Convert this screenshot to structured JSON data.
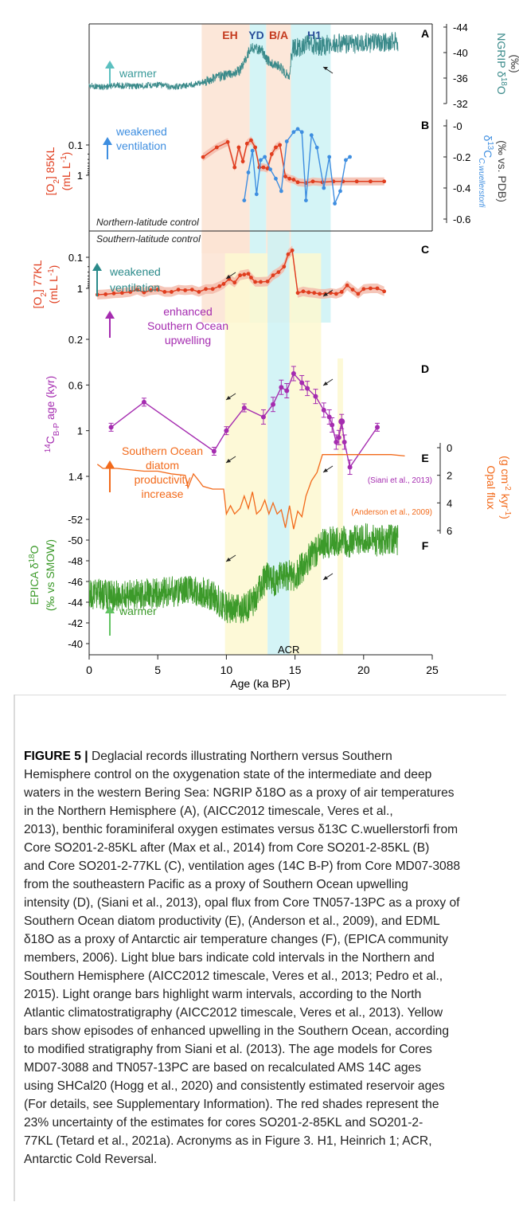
{
  "figure": {
    "period_labels": [
      {
        "text": "EH",
        "color": "#c43a1e"
      },
      {
        "text": "YD",
        "color": "#2a4f9a"
      },
      {
        "text": "B/A",
        "color": "#c43a1e"
      },
      {
        "text": "H1",
        "color": "#2a4f9a"
      }
    ],
    "period_bars": [
      {
        "name": "EH",
        "type": "warm",
        "from_ka": 8.2,
        "to_ka": 11.7,
        "color": "#fbe3d2"
      },
      {
        "name": "YD",
        "type": "cold",
        "from_ka": 11.7,
        "to_ka": 12.9,
        "color": "#cdf2f5"
      },
      {
        "name": "B/A",
        "type": "warm",
        "from_ka": 12.9,
        "to_ka": 14.7,
        "color": "#fbe3d2"
      },
      {
        "name": "H1",
        "type": "cold",
        "from_ka": 14.7,
        "to_ka": 17.6,
        "color": "#cdf2f5"
      },
      {
        "name": "upwelling-1",
        "type": "upwelling",
        "from_ka": 9.9,
        "to_ka": 13.0,
        "color": "#fdf8d0"
      },
      {
        "name": "ACR",
        "type": "cold",
        "from_ka": 13.0,
        "to_ka": 14.6,
        "color": "#cdf2f5"
      },
      {
        "name": "upwelling-2",
        "type": "upwelling",
        "from_ka": 14.6,
        "to_ka": 16.9,
        "color": "#fdf8d0"
      },
      {
        "name": "upwelling-3",
        "type": "upwelling",
        "from_ka": 18.1,
        "to_ka": 18.5,
        "color": "#fdf8d0"
      }
    ],
    "panel_letters": [
      "A",
      "B",
      "C",
      "D",
      "E",
      "F"
    ],
    "section_labels": {
      "north": "Northern-latitude control",
      "south": "Southern-latitude control"
    },
    "annotations": {
      "a_warmer": "warmer",
      "b_text": [
        "weakened",
        "ventilation"
      ],
      "c_text": [
        "weakened",
        "ventilation"
      ],
      "d_text": [
        "enhanced",
        "Southern Ocean",
        "upwelling"
      ],
      "e_text": [
        "Southern Ocean",
        "diatom",
        "productivity",
        "increase"
      ],
      "f_warmer": "warmer",
      "acr": "ACR",
      "siani": "(Siani et al., 2013)",
      "anderson": "(Anderson et al., 2009)"
    },
    "colors": {
      "ngrip": "#3a8a8a",
      "o2": "#e03d1e",
      "o2_band": "#f2b8a8",
      "d13c": "#3e8ee0",
      "c14": "#a52cb0",
      "opal": "#f26a1b",
      "epica": "#3c9a2a",
      "arrow_a": "#5cc0c0",
      "arrow_c": "#2a8a8a"
    }
  },
  "chart_data": [
    {
      "type": "line",
      "panel": "A",
      "series_name": "NGRIP δ18O",
      "ylabel": "NGRIP δ18O (‰)",
      "yticks": [
        -32,
        -36,
        -40,
        -44
      ],
      "ylim": [
        -44,
        -32
      ],
      "x": [
        0,
        1,
        2,
        3,
        4,
        5,
        6,
        7,
        8,
        8.5,
        9,
        10,
        11,
        11.5,
        11.8,
        12.2,
        12.6,
        12.9,
        13.3,
        13.8,
        14.3,
        14.6,
        14.8,
        15.5,
        16,
        17,
        18,
        19,
        20,
        21,
        22,
        22.5
      ],
      "y": [
        -34.8,
        -34.6,
        -34.9,
        -34.7,
        -34.8,
        -35.0,
        -34.6,
        -34.8,
        -35.2,
        -35.5,
        -36.0,
        -36.5,
        -37.2,
        -39.5,
        -40.8,
        -40.6,
        -40.3,
        -39.0,
        -38.2,
        -38.0,
        -36.8,
        -36.4,
        -40.6,
        -41.0,
        -41.2,
        -41.0,
        -41.5,
        -41.2,
        -41.6,
        -41.4,
        -41.8,
        -41.5
      ]
    },
    {
      "type": "line",
      "panel": "B",
      "series_name": "[O2] 85KL",
      "ylabel": "[O2] 85KL (mL L-1)",
      "yscale": "log-reversed",
      "yticks": [
        0.1,
        0.5,
        1
      ],
      "x": [
        8.3,
        9.3,
        10.1,
        10.6,
        10.9,
        11.2,
        11.5,
        11.8,
        12.1,
        12.4,
        12.7,
        13.0,
        13.3,
        13.6,
        13.9,
        14.3,
        14.6,
        14.9,
        15.2,
        15.8,
        16.3,
        17.0,
        17.8,
        18.5,
        19.5,
        20.5,
        21.5
      ],
      "y": [
        0.25,
        0.12,
        0.08,
        0.55,
        0.12,
        0.35,
        0.09,
        0.07,
        0.12,
        0.55,
        0.55,
        0.6,
        0.2,
        0.12,
        0.1,
        1.1,
        1.3,
        1.4,
        1.7,
        1.8,
        1.6,
        1.7,
        1.6,
        1.6,
        1.6,
        1.6,
        1.6
      ]
    },
    {
      "type": "line",
      "panel": "B",
      "series_name": "δ13C C.wuellerstorfi",
      "ylabel": "δ13C C.wuellerstorfi (‰ vs. PDB)",
      "yticks": [
        -0.6,
        -0.4,
        -0.2,
        0
      ],
      "x": [
        11.3,
        11.6,
        11.9,
        12.2,
        12.5,
        12.8,
        13.2,
        13.6,
        14.0,
        14.4,
        14.9,
        15.2,
        15.5,
        15.8,
        16.2,
        16.6,
        17.1,
        17.5,
        17.9,
        18.3,
        18.7,
        19.0
      ],
      "y": [
        -0.48,
        -0.3,
        -0.16,
        -0.44,
        -0.22,
        -0.2,
        -0.28,
        -0.34,
        -0.42,
        -0.1,
        -0.04,
        -0.02,
        -0.04,
        -0.48,
        -0.06,
        -0.14,
        -0.4,
        -0.2,
        -0.5,
        -0.42,
        -0.22,
        -0.2
      ]
    },
    {
      "type": "line",
      "panel": "C",
      "series_name": "[O2] 77KL",
      "ylabel": "[O2] 77KL (mL L-1)",
      "yscale": "log-reversed",
      "yticks": [
        0.1,
        0.5,
        1
      ],
      "x": [
        0.6,
        1.2,
        1.8,
        2.4,
        3.0,
        3.5,
        4.0,
        4.5,
        5.0,
        5.5,
        6.0,
        6.5,
        7.0,
        7.5,
        8.0,
        8.5,
        9.0,
        9.5,
        9.8,
        10.2,
        10.6,
        11.0,
        11.3,
        11.6,
        11.8,
        12.1,
        12.5,
        13.0,
        13.4,
        13.8,
        14.2,
        14.5,
        14.8,
        15.2,
        15.6,
        16.0,
        16.4,
        16.8,
        17.2,
        17.6,
        18.0,
        18.4,
        18.8,
        19.2,
        19.6,
        20.0,
        20.5,
        21.0,
        21.5
      ],
      "y": [
        1.6,
        1.55,
        1.45,
        1.4,
        1.3,
        1.1,
        1.35,
        1.15,
        1.1,
        1.3,
        1.3,
        1.1,
        1.15,
        1.1,
        1.3,
        1.05,
        1.05,
        0.85,
        0.72,
        0.5,
        0.65,
        0.38,
        0.36,
        0.34,
        0.45,
        0.62,
        0.62,
        0.6,
        0.38,
        0.3,
        0.2,
        0.08,
        0.06,
        1.4,
        1.25,
        1.35,
        1.4,
        1.5,
        1.5,
        1.4,
        1.5,
        1.3,
        0.8,
        1.1,
        1.5,
        1.05,
        1.0,
        1.0,
        1.25
      ]
    },
    {
      "type": "scatter",
      "panel": "D",
      "series_name": "14C B-P age",
      "ylabel": "14C B-P age (kyr)",
      "yticks": [
        0.2,
        0.6,
        1,
        1.4
      ],
      "ylim": [
        1.6,
        0.1
      ],
      "x": [
        1.6,
        4.0,
        9.1,
        10.0,
        11.3,
        12.7,
        13.4,
        14.0,
        14.4,
        14.9,
        15.5,
        15.9,
        16.5,
        17.1,
        17.5,
        17.7,
        18.0,
        18.2,
        18.4,
        18.6,
        19.0,
        21.0
      ],
      "y": [
        0.97,
        0.75,
        1.18,
        1.0,
        0.8,
        0.88,
        0.77,
        0.62,
        0.65,
        0.5,
        0.58,
        0.63,
        0.7,
        0.82,
        0.88,
        0.95,
        1.1,
        1.06,
        0.92,
        1.1,
        1.32,
        0.97
      ]
    },
    {
      "type": "line",
      "panel": "E",
      "series_name": "Opal flux",
      "ylabel": "Opal flux (g cm-2 kyr-1)",
      "yticks": [
        0,
        2,
        4,
        6
      ],
      "ylim": [
        0,
        6
      ],
      "x": [
        0.6,
        1.0,
        2.0,
        3.0,
        4.0,
        5.0,
        6.0,
        7.0,
        7.2,
        7.6,
        8.0,
        8.3,
        9.0,
        9.8,
        10.0,
        10.3,
        10.6,
        11.0,
        11.3,
        11.6,
        11.9,
        12.2,
        12.5,
        12.8,
        13.1,
        13.4,
        13.7,
        14.0,
        14.3,
        14.6,
        14.9,
        15.2,
        15.5,
        15.8,
        16.2,
        16.6,
        17.0,
        17.5,
        18.0,
        18.5,
        19.0,
        20.0,
        21.0,
        22.0,
        23.0
      ],
      "y": [
        1.2,
        1.5,
        1.5,
        1.6,
        1.7,
        1.7,
        1.9,
        2.0,
        2.9,
        1.9,
        2.4,
        2.8,
        3.0,
        3.0,
        4.8,
        4.2,
        4.8,
        4.4,
        3.5,
        4.4,
        3.2,
        4.8,
        4.5,
        3.8,
        4.8,
        4.0,
        4.8,
        4.5,
        5.8,
        4.2,
        5.9,
        4.6,
        5.0,
        3.5,
        2.4,
        1.8,
        0.5,
        0.5,
        0.5,
        0.5,
        0.5,
        0.5,
        0.5,
        0.5,
        0.6
      ]
    },
    {
      "type": "line",
      "panel": "F",
      "series_name": "EPICA δ18O",
      "ylabel": "EPICA δ18O (‰ vs SMOW)",
      "yticks": [
        -40,
        -42,
        -44,
        -46,
        -48,
        -50,
        -52
      ],
      "ylim": [
        -52,
        -40
      ],
      "x": [
        0,
        2,
        4,
        6,
        8,
        9,
        10,
        11,
        11.5,
        12,
        12.5,
        13,
        13.5,
        14,
        14.5,
        15,
        15.5,
        16,
        16.5,
        17,
        18,
        19,
        20,
        21,
        22,
        22.5
      ],
      "y": [
        -44.8,
        -44.6,
        -44.8,
        -45.0,
        -45.1,
        -44.6,
        -43.5,
        -43.2,
        -43.5,
        -44.2,
        -45.5,
        -46.6,
        -46.0,
        -46.5,
        -46.6,
        -46.5,
        -47.3,
        -48.2,
        -48.8,
        -49.6,
        -50.0,
        -49.8,
        -50.2,
        -49.9,
        -50.1,
        -50.0
      ]
    }
  ],
  "axis": {
    "xlabel": "Age (ka BP)",
    "xticks": [
      0,
      5,
      10,
      15,
      20,
      25
    ],
    "xlim": [
      0,
      25
    ]
  },
  "caption": {
    "title": "FIGURE 5 | ",
    "lines": [
      "Deglacial records illustrating Northern versus Southern",
      "Hemisphere control on the oxygenation state of the intermediate and deep",
      "waters in the western Bering Sea: NGRIP δ18O as a proxy of air temperatures",
      "in the Northern Hemisphere (A), (AICC2012 timescale, Veres et al.,",
      "2013), benthic foraminiferal oxygen estimates versus δ13C C.wuellerstorfi from",
      "Core SO201-2-85KL after (Max et al., 2014) from Core SO201-2-85KL (B)",
      "and Core SO201-2-77KL (C), ventilation ages (14C B-P) from Core MD07-3088",
      "from the southeastern Pacific as a proxy of Southern Ocean upwelling",
      "intensity (D), (Siani et al., 2013), opal flux from Core TN057-13PC as a proxy of",
      "Southern Ocean diatom productivity (E), (Anderson et al., 2009), and EDML",
      "δ18O as a proxy of Antarctic air temperature changes (F), (EPICA community",
      "members, 2006). Light blue bars indicate cold intervals in the Northern and",
      "Southern Hemisphere (AICC2012 timescale, Veres et al., 2013; Pedro et al.,",
      "2015). Light orange bars highlight warm intervals, according to the North",
      "Atlantic climatostratigraphy (AICC2012 timescale, Veres et al., 2013). Yellow",
      "bars show episodes of enhanced upwelling in the Southern Ocean, according",
      "to modified stratigraphy from Siani et al. (2013). The age models for Cores",
      "MD07-3088 and TN057-13PC are based on recalculated AMS 14C ages",
      "using SHCal20 (Hogg et al., 2020) and consistently estimated reservoir ages",
      "(For details, see Supplementary Information). The red shades represent the",
      "23% uncertainty of the estimates for cores SO201-2-85KL and SO201-2-",
      "77KL (Tetard et al., 2021a). Acronyms as in Figure 3. H1, Heinrich 1; ACR,",
      "Antarctic Cold Reversal."
    ]
  }
}
